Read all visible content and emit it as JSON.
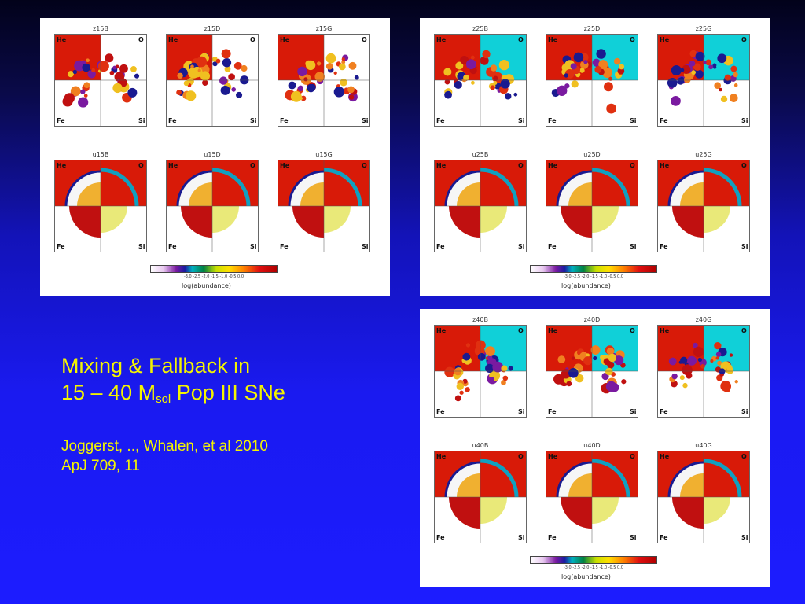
{
  "slide": {
    "title_line1": "Mixing & Fallback in",
    "title_line2_pre": "15 – 40 M",
    "title_line2_sub": "sol",
    "title_line2_post": " Pop III SNe",
    "cite_line1": "Joggerst, .., Whalen, et al 2010",
    "cite_line2": "ApJ 709, 11"
  },
  "figures": [
    {
      "panels": [
        {
          "title": "z15B",
          "style": "z"
        },
        {
          "title": "z15D",
          "style": "z"
        },
        {
          "title": "z15G",
          "style": "z"
        },
        {
          "title": "u15B",
          "style": "u"
        },
        {
          "title": "u15D",
          "style": "u"
        },
        {
          "title": "u15G",
          "style": "u"
        }
      ],
      "colorbar": {
        "label": "log(abundance)",
        "ticks": "-3.0  -2.5  -2.0  -1.5  -1.0  -0.5  0.0"
      }
    },
    {
      "panels": [
        {
          "title": "z25B",
          "style": "zc"
        },
        {
          "title": "z25D",
          "style": "zc"
        },
        {
          "title": "z25G",
          "style": "zc"
        },
        {
          "title": "u25B",
          "style": "u"
        },
        {
          "title": "u25D",
          "style": "u"
        },
        {
          "title": "u25G",
          "style": "u"
        }
      ],
      "colorbar": {
        "label": "log(abundance)",
        "ticks": "-3.0  -2.5  -2.0  -1.5  -1.0  -0.5  0.0"
      }
    },
    {
      "panels": [
        {
          "title": "z40B",
          "style": "zc"
        },
        {
          "title": "z40D",
          "style": "zc"
        },
        {
          "title": "z40G",
          "style": "zc"
        },
        {
          "title": "u40B",
          "style": "u"
        },
        {
          "title": "u40D",
          "style": "u"
        },
        {
          "title": "u40G",
          "style": "u"
        }
      ],
      "colorbar": {
        "label": "log(abundance)",
        "ticks": "-3.0  -2.5  -2.0  -1.5  -1.0  -0.5  0.0"
      }
    }
  ],
  "quadrant_labels": {
    "tl": "He",
    "tr": "O",
    "bl": "Fe",
    "br": "Si"
  },
  "colors": {
    "title_yellow": "#f4f400",
    "he_red": "#d81a08",
    "o_cyan": "#10d0d8",
    "fe_dark": "#a00000"
  }
}
